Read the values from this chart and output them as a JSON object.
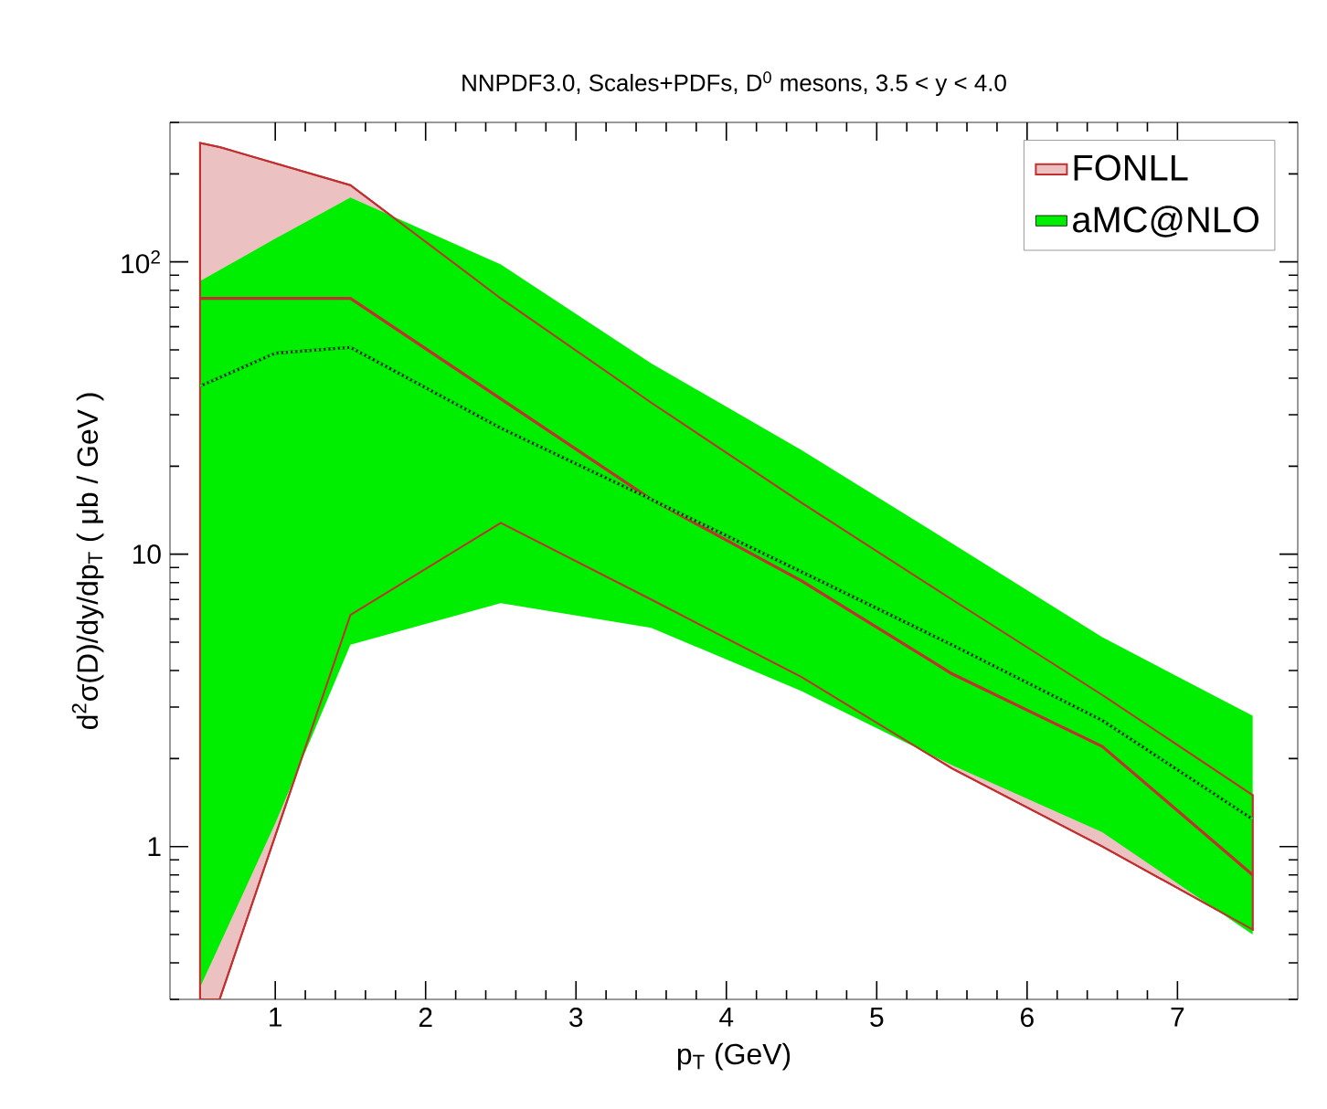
{
  "chart_data": {
    "type": "line",
    "title": "NNPDF3.0, Scales+PDFs, D$^{0}$ mesons, 3.5 < y < 4.0",
    "xlabel": "p$_{T}$ (GeV)",
    "ylabel": "d$^{2}$σ(D)/dy/dp$_{T}$ ( μb / GeV )",
    "xlim": [
      0.3,
      7.8
    ],
    "xticks": [
      1,
      2,
      3,
      4,
      5,
      6,
      7
    ],
    "ylim": [
      0.3,
      300
    ],
    "yticks": [
      {
        "value": 100,
        "label": "10$^{2}$"
      },
      10,
      1
    ],
    "log": "y",
    "legend": "top right",
    "marker": "none",
    "series": [
      {
        "name": "FONLL",
        "color": "#c03030",
        "line_style": "solid",
        "x": [
          0.5,
          0.63,
          1.5,
          2.5,
          3.5,
          4.5,
          5.5,
          6.5,
          7.5
        ],
        "values": [
          75,
          75,
          75,
          34,
          15.4,
          8.1,
          3.9,
          2.2,
          0.8
        ],
        "lower": [
          0.3,
          0.3,
          6.2,
          12.8,
          7.0,
          3.8,
          1.85,
          1.0,
          0.52
        ],
        "upper": [
          255,
          247,
          183,
          75,
          33,
          15,
          7,
          3.3,
          1.5
        ]
      },
      {
        "color": "#202020",
        "line_style": "solid",
        "x": [
          0.5,
          1.0,
          1.5,
          2.5,
          3.5,
          4.5,
          5.5,
          6.5,
          7.5
        ],
        "values": [
          37.6,
          48.7,
          51,
          27,
          15.4,
          8.7,
          4.9,
          2.7,
          1.24
        ]
      },
      {
        "name": "aMC@NLO",
        "color": "#00ee00",
        "line_style": "dotted",
        "x": [
          0.5,
          1.0,
          1.5,
          2.5,
          3.5,
          4.5,
          5.5,
          6.5,
          7.5
        ],
        "values": [
          37.6,
          48.7,
          51,
          27,
          15.4,
          8.7,
          4.9,
          2.7,
          1.24
        ],
        "lower": [
          0.33,
          1.2,
          4.9,
          6.8,
          5.6,
          3.4,
          1.9,
          1.12,
          0.5
        ],
        "upper": [
          86,
          120,
          166,
          98,
          45,
          22.7,
          10.9,
          5.2,
          2.8
        ]
      }
    ]
  }
}
